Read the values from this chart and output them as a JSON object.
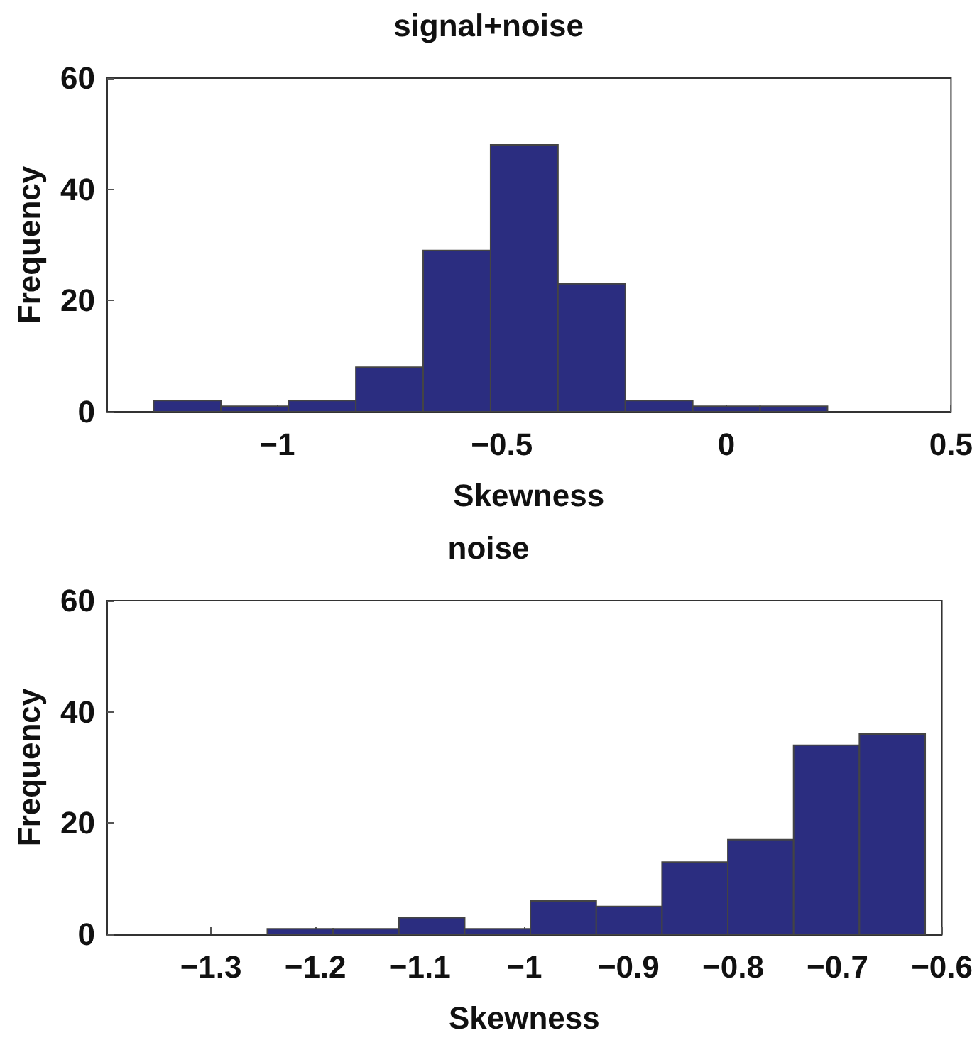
{
  "chart_data": [
    {
      "type": "histogram",
      "title": "signal+noise",
      "xlabel": "Skewness",
      "ylabel": "Frequency",
      "color": "#2b2d80",
      "bins": [
        -1.275,
        -1.125,
        -0.975,
        -0.825,
        -0.675,
        -0.525,
        -0.375,
        -0.225,
        -0.075,
        0.075,
        0.225
      ],
      "values": [
        2,
        1,
        2,
        8,
        29,
        48,
        23,
        2,
        1,
        1
      ],
      "xlim": [
        -1.38,
        0.5
      ],
      "xticks": [
        -1,
        -0.5,
        0,
        0.5
      ],
      "ylim": [
        0,
        60
      ],
      "yticks": [
        0,
        20,
        40,
        60
      ],
      "grid": false
    },
    {
      "type": "histogram",
      "title": "noise",
      "xlabel": "Skewness",
      "ylabel": "Frequency",
      "color": "#2b2d80",
      "bins": [
        -1.246,
        -1.183,
        -1.12,
        -1.057,
        -0.994,
        -0.931,
        -0.868,
        -0.805,
        -0.742,
        -0.679,
        -0.616
      ],
      "values": [
        1,
        1,
        3,
        1,
        6,
        5,
        13,
        17,
        34,
        36
      ],
      "xlim": [
        -1.4,
        -0.6
      ],
      "xticks": [
        -1.3,
        -1.2,
        -1.1,
        -1,
        -0.9,
        -0.8,
        -0.7,
        -0.6
      ],
      "ylim": [
        0,
        60
      ],
      "yticks": [
        0,
        20,
        40,
        60
      ],
      "grid": false
    }
  ]
}
